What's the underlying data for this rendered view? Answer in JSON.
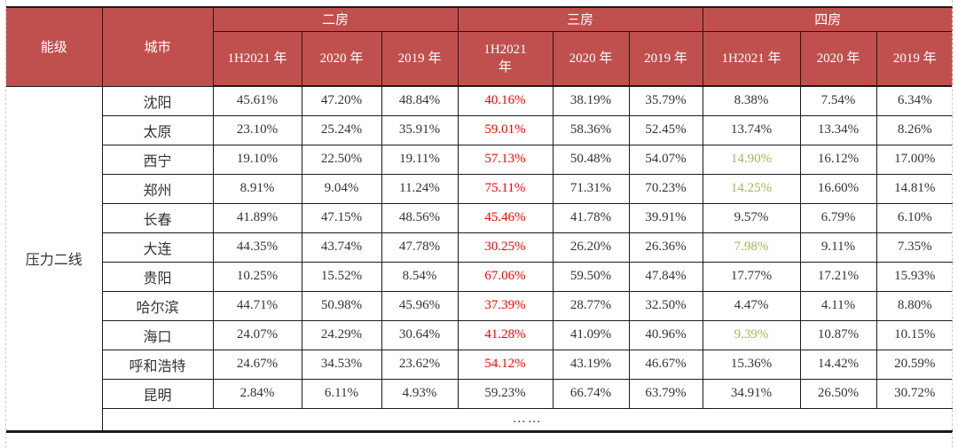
{
  "palette": {
    "header_bg": "#c0504d",
    "header_text": "#ffffff",
    "body_text": "#333333",
    "red_text": "#ff0000",
    "green_text": "#9bbb59",
    "border_dark": "#1b1b1b",
    "page_guide": "#c9c9c9"
  },
  "header": {
    "col_energy": "能级",
    "col_city": "城市",
    "groups": [
      {
        "label": "二房",
        "cols": [
          "1H2021 年",
          "2020 年",
          "2019 年"
        ]
      },
      {
        "label": "三房",
        "cols": [
          "1H2021\n年",
          "2020 年",
          "2019 年"
        ]
      },
      {
        "label": "四房",
        "cols": [
          "1H2021 年",
          "2020 年",
          "2019 年"
        ]
      }
    ]
  },
  "tier_label": "压力二线",
  "rows": [
    {
      "city": "沈阳",
      "values": [
        "45.61%",
        "47.20%",
        "48.84%",
        "40.16%",
        "38.19%",
        "35.79%",
        "8.38%",
        "7.54%",
        "6.34%"
      ],
      "styles": [
        "",
        "",
        "",
        "red",
        "",
        "",
        "",
        "",
        ""
      ]
    },
    {
      "city": "太原",
      "values": [
        "23.10%",
        "25.24%",
        "35.91%",
        "59.01%",
        "58.36%",
        "52.45%",
        "13.74%",
        "13.34%",
        "8.26%"
      ],
      "styles": [
        "",
        "",
        "",
        "red",
        "",
        "",
        "",
        "",
        ""
      ]
    },
    {
      "city": "西宁",
      "values": [
        "19.10%",
        "22.50%",
        "19.11%",
        "57.13%",
        "50.48%",
        "54.07%",
        "14.90%",
        "16.12%",
        "17.00%"
      ],
      "styles": [
        "",
        "",
        "",
        "red",
        "",
        "",
        "green",
        "",
        ""
      ]
    },
    {
      "city": "郑州",
      "values": [
        "8.91%",
        "9.04%",
        "11.24%",
        "75.11%",
        "71.31%",
        "70.23%",
        "14.25%",
        "16.60%",
        "14.81%"
      ],
      "styles": [
        "",
        "",
        "",
        "red",
        "",
        "",
        "green",
        "",
        ""
      ]
    },
    {
      "city": "长春",
      "values": [
        "41.89%",
        "47.15%",
        "48.56%",
        "45.46%",
        "41.78%",
        "39.91%",
        "9.57%",
        "6.79%",
        "6.10%"
      ],
      "styles": [
        "",
        "",
        "",
        "red",
        "",
        "",
        "",
        "",
        ""
      ]
    },
    {
      "city": "大连",
      "values": [
        "44.35%",
        "43.74%",
        "47.78%",
        "30.25%",
        "26.20%",
        "26.36%",
        "7.98%",
        "9.11%",
        "7.35%"
      ],
      "styles": [
        "",
        "",
        "",
        "red",
        "",
        "",
        "green",
        "",
        ""
      ]
    },
    {
      "city": "贵阳",
      "values": [
        "10.25%",
        "15.52%",
        "8.54%",
        "67.06%",
        "59.50%",
        "47.84%",
        "17.77%",
        "17.21%",
        "15.93%"
      ],
      "styles": [
        "",
        "",
        "",
        "red",
        "",
        "",
        "",
        "",
        ""
      ]
    },
    {
      "city": "哈尔滨",
      "values": [
        "44.71%",
        "50.98%",
        "45.96%",
        "37.39%",
        "28.77%",
        "32.50%",
        "4.47%",
        "4.11%",
        "8.80%"
      ],
      "styles": [
        "",
        "",
        "",
        "red",
        "",
        "",
        "",
        "",
        ""
      ]
    },
    {
      "city": "海口",
      "values": [
        "24.07%",
        "24.29%",
        "30.64%",
        "41.28%",
        "41.09%",
        "40.96%",
        "9.39%",
        "10.87%",
        "10.15%"
      ],
      "styles": [
        "",
        "",
        "",
        "red",
        "",
        "",
        "green",
        "",
        ""
      ]
    },
    {
      "city": "呼和浩特",
      "values": [
        "24.67%",
        "34.53%",
        "23.62%",
        "54.12%",
        "43.19%",
        "46.67%",
        "15.36%",
        "14.42%",
        "20.59%"
      ],
      "styles": [
        "",
        "",
        "",
        "red",
        "",
        "",
        "",
        "",
        ""
      ]
    },
    {
      "city": "昆明",
      "values": [
        "2.84%",
        "6.11%",
        "4.93%",
        "59.23%",
        "66.74%",
        "63.79%",
        "34.91%",
        "26.50%",
        "30.72%"
      ],
      "styles": [
        "",
        "",
        "",
        "",
        "",
        "",
        "",
        "",
        ""
      ]
    }
  ],
  "ellipsis": "……"
}
